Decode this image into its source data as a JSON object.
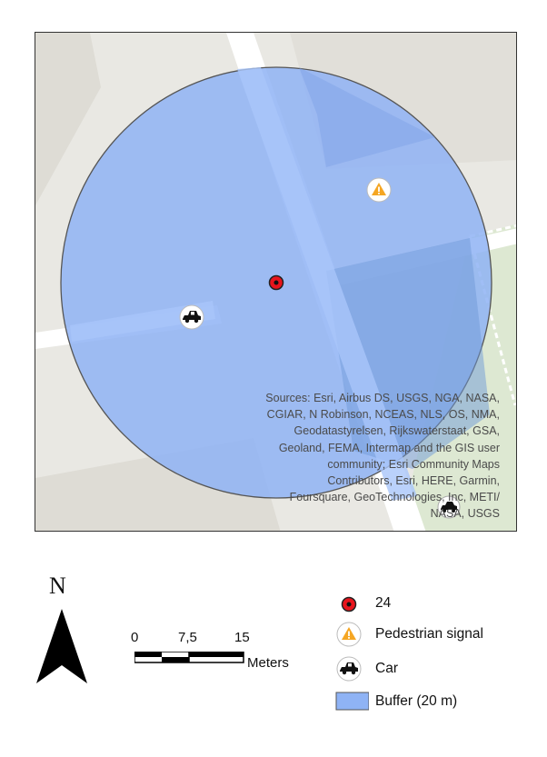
{
  "map": {
    "attribution": "Sources: Esri, Airbus DS, USGS, NGA, NASA, CGIAR, N Robinson, NCEAS, NLS, OS, NMA, Geodatastyrelsen, Rijkswaterstaat, GSA, Geoland, FEMA, Intermap and the GIS user community; Esri Community Maps Contributors, Esri, HERE, Garmin, Foursquare, GeoTechnologies, Inc, METI/NASA, USGS",
    "attribution_lines": [
      "Sources: Esri, Airbus DS, USGS, NGA, NASA,",
      "CGIAR, N Robinson, NCEAS, NLS, OS, NMA,",
      "Geodatastyrelsen, Rijkswaterstaat, GSA,",
      "Geoland, FEMA, Intermap and the GIS user",
      "community; Esri Community Maps",
      "Contributors, Esri, HERE, Garmin,",
      "Foursquare, GeoTechnologies, Inc, METI/",
      "NASA, USGS"
    ],
    "colors": {
      "background": "#e9e8e3",
      "road": "#ffffff",
      "park": "#dde8d2",
      "block": "#dedcd5",
      "buffer_fill": "#8fb3f5",
      "buffer_stroke": "#555555",
      "point_red": "#e8141c"
    }
  },
  "north_arrow": {
    "letter": "N"
  },
  "scalebar": {
    "labels": [
      "0",
      "7,5",
      "15"
    ],
    "unit": "Meters",
    "max_value": 15,
    "segments": 4
  },
  "legend": {
    "items": [
      {
        "label": "24",
        "icon": "red-point-icon"
      },
      {
        "label": "Pedestrian signal",
        "icon": "warning-triangle-icon"
      },
      {
        "label": "Car",
        "icon": "car-icon"
      },
      {
        "label": "Buffer (20 m)",
        "icon": "buffer-swatch"
      }
    ]
  }
}
